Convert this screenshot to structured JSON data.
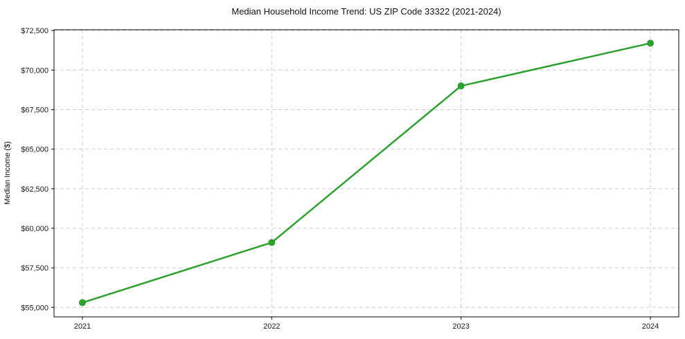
{
  "chart_data": {
    "type": "line",
    "title": "Median Household Income Trend: US ZIP Code 33322 (2021-2024)",
    "xlabel": "",
    "ylabel": "Median Income ($)",
    "categories": [
      "2021",
      "2022",
      "2023",
      "2024"
    ],
    "x": [
      2021,
      2022,
      2023,
      2024
    ],
    "series": [
      {
        "name": "Median Household Income",
        "values": [
          55300,
          59100,
          69000,
          71700
        ]
      }
    ],
    "y_ticks": [
      {
        "value": 55000,
        "label": "$55,000"
      },
      {
        "value": 57500,
        "label": "$57,500"
      },
      {
        "value": 60000,
        "label": "$60,000"
      },
      {
        "value": 62500,
        "label": "$62,500"
      },
      {
        "value": 65000,
        "label": "$65,000"
      },
      {
        "value": 67500,
        "label": "$67,500"
      },
      {
        "value": 70000,
        "label": "$70,000"
      },
      {
        "value": 72500,
        "label": "$72,500"
      }
    ],
    "xlim": [
      2020.85,
      2024.15
    ],
    "ylim": [
      54400,
      72550
    ],
    "grid": true,
    "grid_style": "dashed",
    "legend": "none",
    "line_color": "#2ca02c",
    "marker_color": "#2ca02c",
    "grid_color": "#cccccc"
  }
}
